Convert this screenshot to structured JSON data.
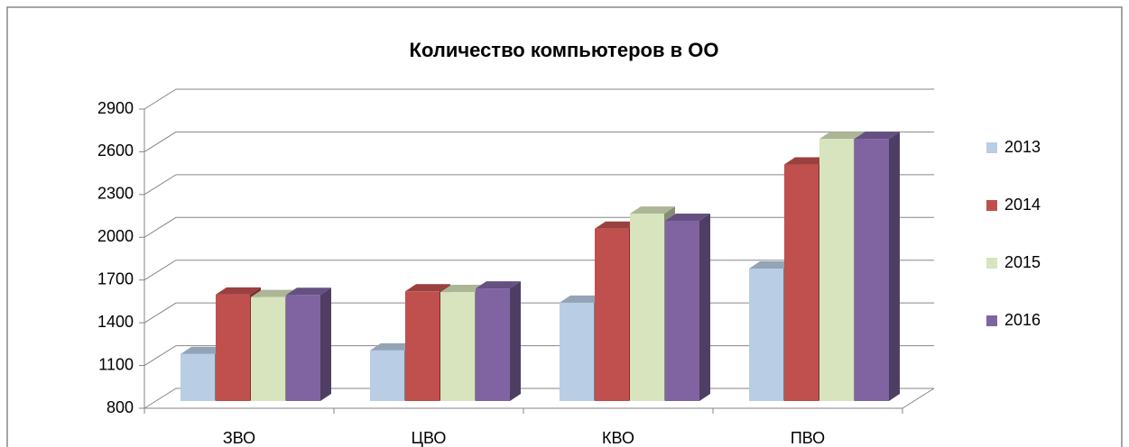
{
  "chart_data": {
    "type": "bar3d",
    "title": "Количество компьютеров в ОО",
    "categories": [
      "ЗВО",
      "ЦВО",
      "КВО",
      "ПВО"
    ],
    "series": [
      {
        "name": "2013",
        "color": "#b9cde5",
        "values": [
          1130,
          1155,
          1490,
          1730
        ]
      },
      {
        "name": "2014",
        "color": "#c0504d",
        "values": [
          1547,
          1570,
          2010,
          2460
        ]
      },
      {
        "name": "2015",
        "color": "#d7e4bd",
        "values": [
          1530,
          1565,
          2115,
          2640
        ]
      },
      {
        "name": "2016",
        "color": "#8064a2",
        "values": [
          1545,
          1590,
          2065,
          2640
        ]
      }
    ],
    "ylim": [
      800,
      2900
    ],
    "yticks": [
      800,
      1100,
      1400,
      1700,
      2000,
      2300,
      2600,
      2900
    ],
    "grid": true,
    "legend": "right"
  }
}
